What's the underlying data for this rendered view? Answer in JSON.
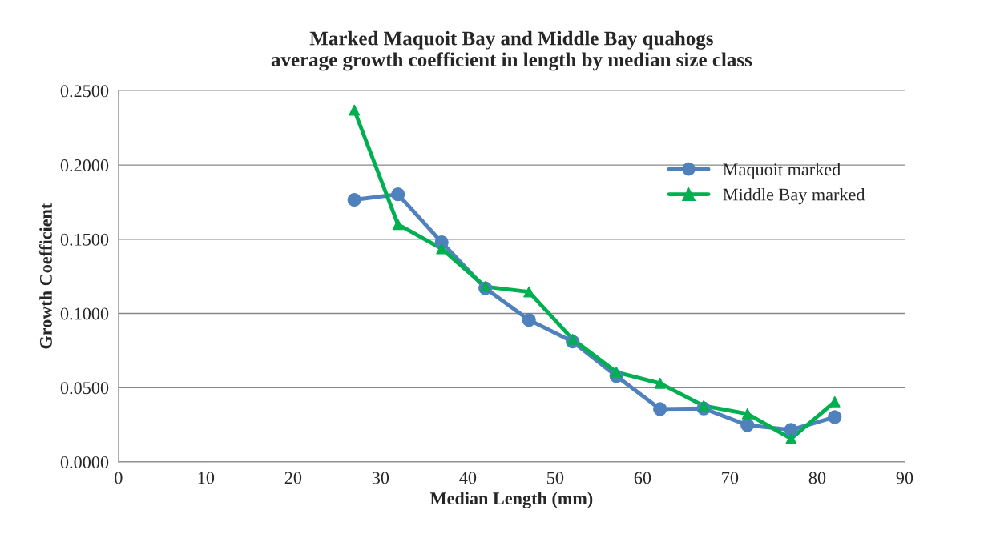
{
  "chart_data": {
    "type": "line",
    "title": "Marked Maquoit Bay and Middle Bay quahogs\naverage growth coefficient in length by median size class",
    "xlabel": "Median Length (mm)",
    "ylabel": "Growth Coefficient",
    "x": [
      27,
      32,
      37,
      42,
      47,
      52,
      57,
      62,
      67,
      72,
      77,
      82
    ],
    "series": [
      {
        "name": "Maquoit marked",
        "color": "#4f81bd",
        "marker": "circle",
        "values": [
          0.1766,
          0.1803,
          0.148,
          0.117,
          0.0956,
          0.081,
          0.0578,
          0.0356,
          0.036,
          0.0248,
          0.0216,
          0.0302
        ]
      },
      {
        "name": "Middle Bay marked",
        "color": "#00b050",
        "marker": "triangle",
        "values": [
          0.237,
          0.16,
          0.1436,
          0.118,
          0.1145,
          0.0826,
          0.0605,
          0.0529,
          0.0378,
          0.0324,
          0.0157,
          0.0405
        ]
      }
    ],
    "xlim": [
      0,
      90
    ],
    "xticks": [
      0,
      10,
      20,
      30,
      40,
      50,
      60,
      70,
      80,
      90
    ],
    "ylim": [
      0,
      0.25
    ],
    "yticks": [
      {
        "value": 0,
        "label": "0.0000"
      },
      {
        "value": 0.05,
        "label": "0.0500"
      },
      {
        "value": 0.1,
        "label": "0.1000"
      },
      {
        "value": 0.15,
        "label": "0.1500"
      },
      {
        "value": 0.2,
        "label": "0.2000"
      },
      {
        "value": 0.25,
        "label": "0.2500"
      }
    ],
    "grid": "y",
    "legend": "right",
    "line_style": "solid"
  }
}
